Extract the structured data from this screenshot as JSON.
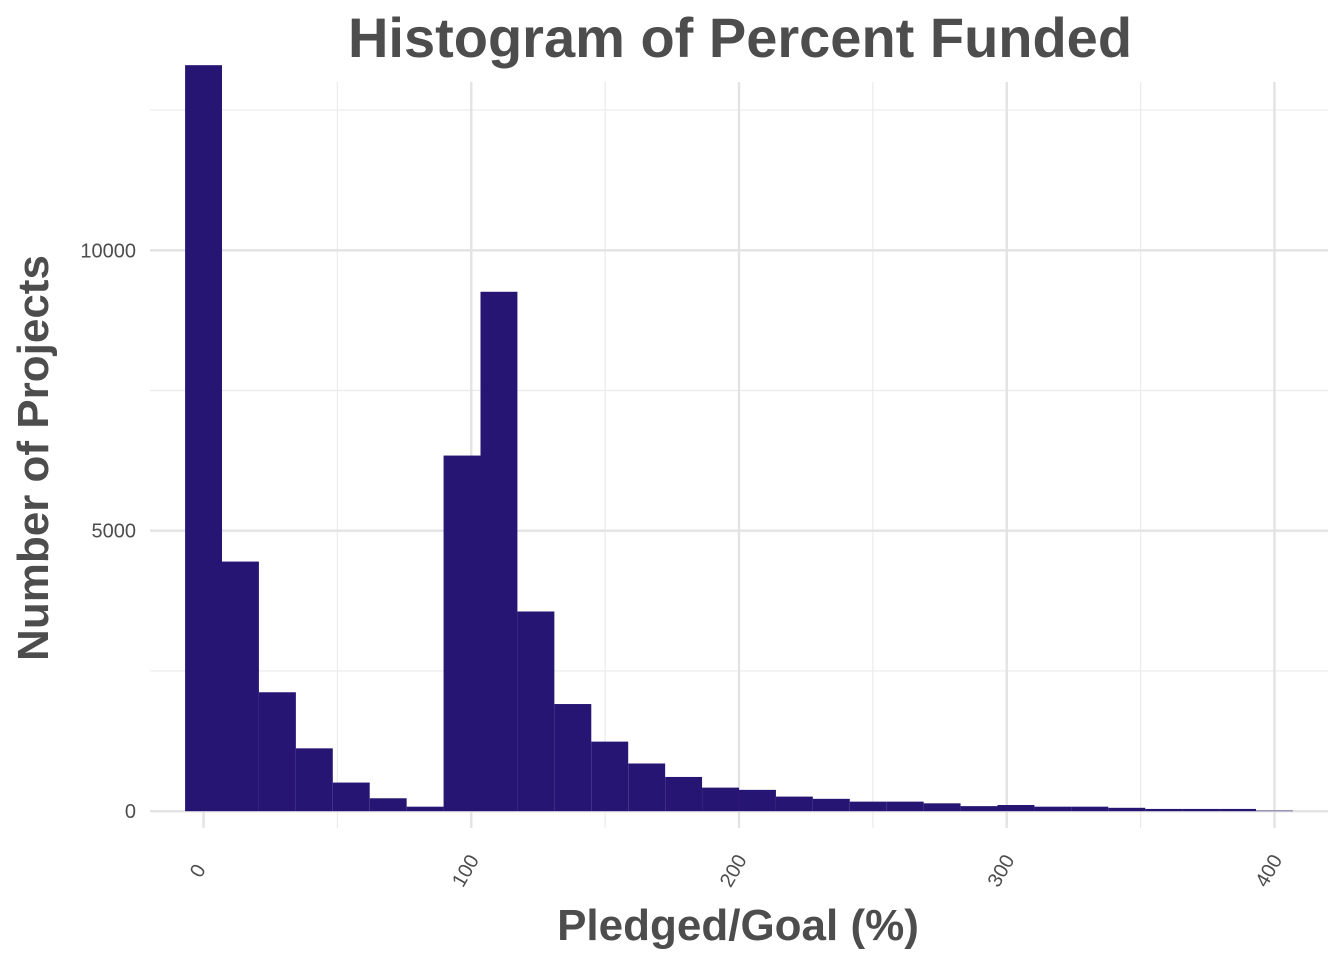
{
  "chart_data": {
    "type": "bar",
    "title": "Histogram of Percent Funded",
    "xlabel": "Pledged/Goal (%)",
    "ylabel": "Number of Projects",
    "xlim": [
      -20,
      420
    ],
    "ylim": [
      -300,
      13000
    ],
    "x_ticks": [
      0,
      100,
      200,
      300,
      400
    ],
    "x_tick_labels": [
      "0",
      "100",
      "200",
      "300",
      "400"
    ],
    "y_ticks": [
      0,
      5000,
      10000
    ],
    "y_tick_labels": [
      "0",
      "5000",
      "10000"
    ],
    "grid": true,
    "bar_color": "#271573",
    "bin_width": 13.79,
    "bins": [
      {
        "x": 0.0,
        "count": 13300
      },
      {
        "x": 13.79,
        "count": 4450
      },
      {
        "x": 27.59,
        "count": 2120
      },
      {
        "x": 41.38,
        "count": 1120
      },
      {
        "x": 55.17,
        "count": 510
      },
      {
        "x": 68.97,
        "count": 230
      },
      {
        "x": 82.76,
        "count": 80
      },
      {
        "x": 96.55,
        "count": 6340
      },
      {
        "x": 110.34,
        "count": 9260
      },
      {
        "x": 124.14,
        "count": 3560
      },
      {
        "x": 137.93,
        "count": 1910
      },
      {
        "x": 151.72,
        "count": 1240
      },
      {
        "x": 165.52,
        "count": 850
      },
      {
        "x": 179.31,
        "count": 610
      },
      {
        "x": 193.1,
        "count": 420
      },
      {
        "x": 206.9,
        "count": 380
      },
      {
        "x": 220.69,
        "count": 260
      },
      {
        "x": 234.48,
        "count": 220
      },
      {
        "x": 248.28,
        "count": 170
      },
      {
        "x": 262.07,
        "count": 170
      },
      {
        "x": 275.86,
        "count": 140
      },
      {
        "x": 289.66,
        "count": 90
      },
      {
        "x": 303.45,
        "count": 110
      },
      {
        "x": 317.24,
        "count": 80
      },
      {
        "x": 331.03,
        "count": 80
      },
      {
        "x": 344.83,
        "count": 60
      },
      {
        "x": 358.62,
        "count": 40
      },
      {
        "x": 372.41,
        "count": 40
      },
      {
        "x": 386.21,
        "count": 40
      },
      {
        "x": 400.0,
        "count": 10
      }
    ]
  }
}
